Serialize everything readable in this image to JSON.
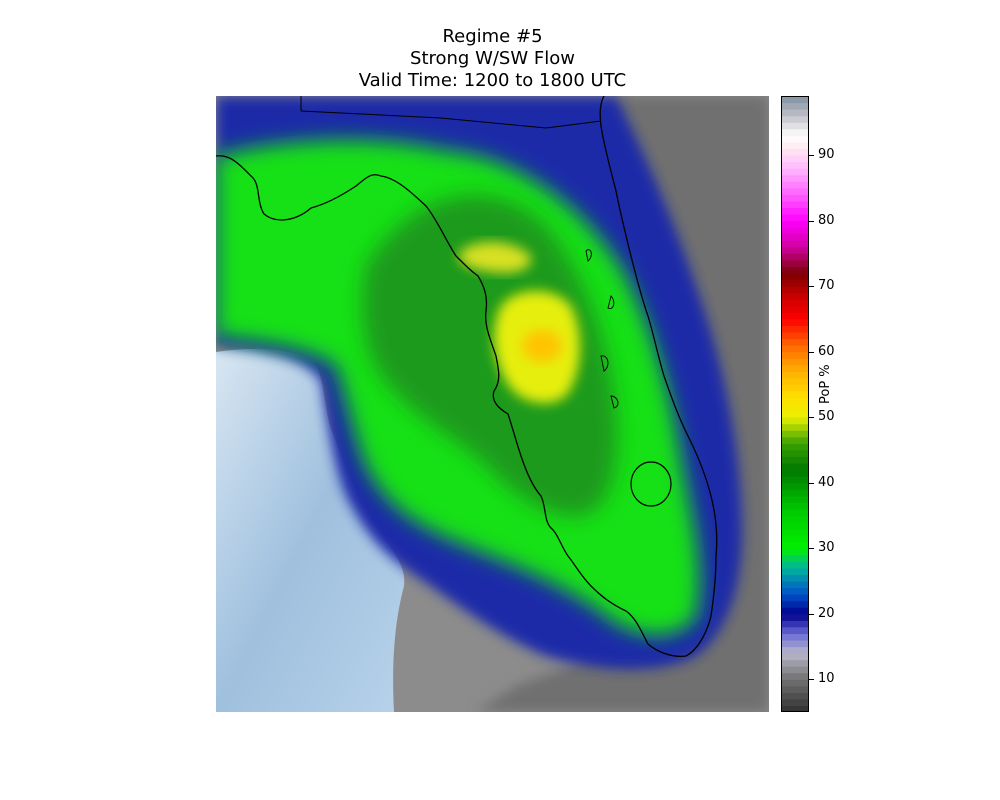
{
  "title": {
    "line1": "Regime #5",
    "line2": "Strong W/SW Flow",
    "line3": "Valid Time: 1200 to 1800 UTC"
  },
  "colorbar": {
    "label": "PoP %",
    "min": 5,
    "max": 99,
    "ticks": [
      "10",
      "20",
      "30",
      "40",
      "50",
      "60",
      "70",
      "80",
      "90"
    ],
    "stops": [
      {
        "v": 5,
        "c": "#303030"
      },
      {
        "v": 10,
        "c": "#707070"
      },
      {
        "v": 14,
        "c": "#b8b8c8"
      },
      {
        "v": 17,
        "c": "#6a6ad8"
      },
      {
        "v": 20,
        "c": "#00008c"
      },
      {
        "v": 23,
        "c": "#0050c8"
      },
      {
        "v": 27,
        "c": "#00b4a0"
      },
      {
        "v": 30,
        "c": "#00f000"
      },
      {
        "v": 36,
        "c": "#00c800"
      },
      {
        "v": 42,
        "c": "#007800"
      },
      {
        "v": 46,
        "c": "#38a000"
      },
      {
        "v": 50,
        "c": "#e8f000"
      },
      {
        "v": 53,
        "c": "#ffe000"
      },
      {
        "v": 57,
        "c": "#ffb000"
      },
      {
        "v": 61,
        "c": "#ff6800"
      },
      {
        "v": 65,
        "c": "#ff0000"
      },
      {
        "v": 69,
        "c": "#c00000"
      },
      {
        "v": 72,
        "c": "#7a0000"
      },
      {
        "v": 76,
        "c": "#d000a0"
      },
      {
        "v": 80,
        "c": "#ff00ff"
      },
      {
        "v": 84,
        "c": "#ff60ff"
      },
      {
        "v": 88,
        "c": "#ffb8ff"
      },
      {
        "v": 91,
        "c": "#ffe8f0"
      },
      {
        "v": 93,
        "c": "#ffffff"
      },
      {
        "v": 96,
        "c": "#c0c0c8"
      },
      {
        "v": 99,
        "c": "#8090a0"
      }
    ]
  },
  "map": {
    "region": "Florida",
    "variable": "PoP %",
    "palette": {
      "water": "#a8c8e4",
      "coast": "#000000"
    }
  }
}
